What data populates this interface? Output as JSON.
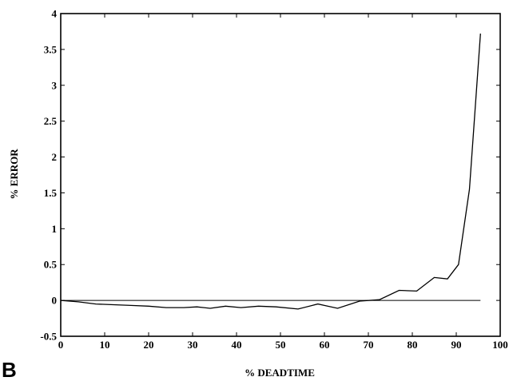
{
  "panel_label": "B",
  "chart_data": {
    "type": "line",
    "xlabel": "% DEADTIME",
    "ylabel": "% ERROR",
    "xlim": [
      0,
      100
    ],
    "ylim": [
      -0.5,
      4
    ],
    "xticks": [
      0,
      10,
      20,
      30,
      40,
      50,
      60,
      70,
      80,
      90,
      100
    ],
    "xtick_labels": [
      "0",
      "10",
      "20",
      "30",
      "40",
      "50",
      "60",
      "70",
      "80",
      "90",
      "100"
    ],
    "yticks": [
      -0.5,
      0,
      0.5,
      1,
      1.5,
      2,
      2.5,
      3,
      3.5,
      4
    ],
    "ytick_labels": [
      "-0.5",
      "0",
      "0.5",
      "1",
      "1.5",
      "2",
      "2.5",
      "3",
      "3.5",
      "4"
    ],
    "grid": false,
    "series": [
      {
        "color": "#000000",
        "x": [
          0,
          4,
          8,
          12,
          16,
          20,
          24,
          28,
          31,
          34,
          37.5,
          41,
          45,
          49,
          54,
          58.5,
          63,
          68,
          72.5,
          77,
          81,
          85,
          88,
          90.5,
          93,
          95.5
        ],
        "y": [
          0,
          -0.02,
          -0.05,
          -0.06,
          -0.07,
          -0.08,
          -0.1,
          -0.1,
          -0.09,
          -0.11,
          -0.08,
          -0.1,
          -0.08,
          -0.09,
          -0.12,
          -0.05,
          -0.11,
          -0.01,
          0.01,
          0.14,
          0.13,
          0.32,
          0.3,
          0.5,
          1.55,
          3.72
        ]
      },
      {
        "color": "#000000",
        "x": [
          0,
          95.5
        ],
        "y": [
          0,
          0
        ]
      }
    ]
  }
}
